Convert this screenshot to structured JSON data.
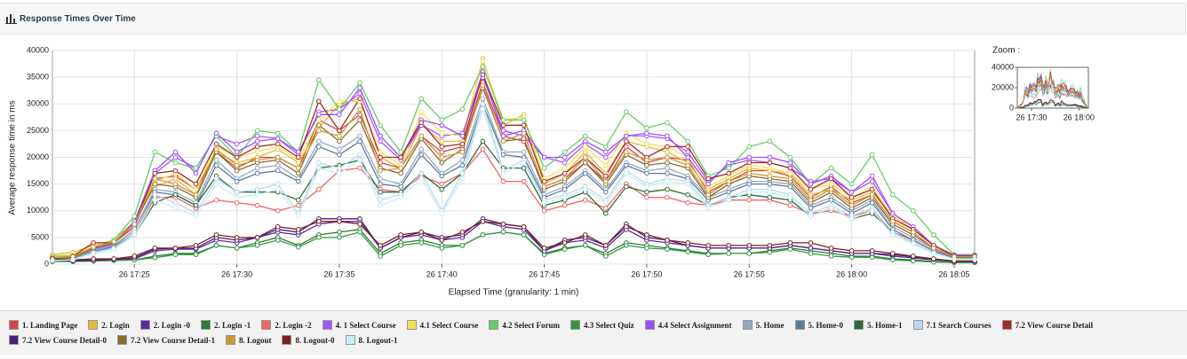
{
  "chart_data": {
    "type": "line",
    "title": "Response Times Over Time",
    "y_label": "Average response time in ms",
    "x_label": "Elapsed Time (granularity: 1 min)",
    "x": [
      "26 17:21",
      "26 17:22",
      "26 17:23",
      "26 17:24",
      "26 17:25",
      "26 17:26",
      "26 17:27",
      "26 17:28",
      "26 17:29",
      "26 17:30",
      "26 17:31",
      "26 17:32",
      "26 17:33",
      "26 17:34",
      "26 17:35",
      "26 17:36",
      "26 17:37",
      "26 17:38",
      "26 17:39",
      "26 17:40",
      "26 17:41",
      "26 17:42",
      "26 17:43",
      "26 17:44",
      "26 17:45",
      "26 17:46",
      "26 17:47",
      "26 17:48",
      "26 17:49",
      "26 17:50",
      "26 17:51",
      "26 17:52",
      "26 17:53",
      "26 17:54",
      "26 17:55",
      "26 17:56",
      "26 17:57",
      "26 17:58",
      "26 17:59",
      "26 18:00",
      "26 18:01",
      "26 18:02",
      "26 18:03",
      "26 18:04",
      "26 18:05",
      "26 18:06"
    ],
    "xticks": [
      "26 17:25",
      "26 17:30",
      "26 17:35",
      "26 17:40",
      "26 17:45",
      "26 17:50",
      "26 17:55",
      "26 18:00",
      "26 18:05"
    ],
    "ylim": [
      0,
      40000
    ],
    "yticks": [
      0,
      5000,
      10000,
      15000,
      20000,
      25000,
      30000,
      35000,
      40000
    ],
    "grid": true,
    "zoom": {
      "label": "Zoom :",
      "ylim": [
        0,
        40000
      ],
      "yticks": [
        0,
        20000,
        40000
      ],
      "xticks": [
        "26 17:30",
        "26 18:00"
      ]
    },
    "series": [
      {
        "name": "1. Landing Page",
        "color": "#d64545",
        "values": [
          1000,
          1500,
          3000,
          4000,
          7000,
          16000,
          16500,
          14000,
          21000,
          18000,
          20000,
          20000,
          18000,
          27000,
          25000,
          28000,
          19000,
          18000,
          24000,
          21000,
          22000,
          34000,
          24000,
          23000,
          14500,
          16000,
          19000,
          15500,
          22000,
          19000,
          20000,
          19500,
          13500,
          15500,
          17500,
          17500,
          16500,
          12500,
          14500,
          11500,
          13000,
          8000,
          6000,
          3000,
          1400,
          1400
        ]
      },
      {
        "name": "2. Login",
        "color": "#e8b83a",
        "values": [
          1800,
          2200,
          3500,
          4500,
          8000,
          14500,
          16000,
          13000,
          21000,
          19000,
          20000,
          21500,
          19000,
          25500,
          30000,
          31000,
          20000,
          18000,
          26000,
          23000,
          23000,
          38500,
          26000,
          28000,
          15000,
          17000,
          21000,
          17000,
          23000,
          22000,
          21000,
          19000,
          14000,
          16000,
          18000,
          17500,
          17000,
          13000,
          14000,
          12000,
          13500,
          9000,
          6500,
          3500,
          1800,
          1700
        ]
      },
      {
        "name": "2. Login -0",
        "color": "#5a2d9c",
        "values": [
          900,
          600,
          800,
          800,
          1000,
          2500,
          2800,
          2800,
          4500,
          4000,
          5000,
          6000,
          5500,
          7500,
          8000,
          8000,
          3000,
          5000,
          5500,
          4500,
          5000,
          8000,
          7000,
          6500,
          2500,
          4000,
          4500,
          3000,
          6500,
          4500,
          4000,
          3500,
          3000,
          3000,
          3000,
          3000,
          3500,
          3000,
          2500,
          2000,
          2000,
          1500,
          1200,
          800,
          500,
          500
        ]
      },
      {
        "name": "2. Login -1",
        "color": "#2e7d32",
        "values": [
          500,
          500,
          600,
          700,
          800,
          1500,
          2000,
          2000,
          3500,
          3000,
          4000,
          5000,
          3500,
          5500,
          6000,
          6500,
          2000,
          4000,
          4500,
          3500,
          3500,
          5500,
          6000,
          5500,
          2000,
          3000,
          3500,
          2000,
          4000,
          3500,
          3000,
          2500,
          2000,
          2000,
          2000,
          2500,
          3000,
          2500,
          2000,
          1500,
          1500,
          1000,
          800,
          500,
          300,
          300
        ]
      },
      {
        "name": "2. Login -2",
        "color": "#f06666",
        "values": [
          900,
          1000,
          2500,
          3200,
          6000,
          12500,
          12500,
          10500,
          12000,
          11500,
          11000,
          10000,
          11000,
          14000,
          17500,
          18000,
          14000,
          13500,
          16500,
          15000,
          17000,
          21500,
          15500,
          15500,
          10000,
          11000,
          12000,
          10500,
          15000,
          12500,
          12500,
          11500,
          11000,
          12000,
          12000,
          12000,
          11000,
          9500,
          10000,
          9000,
          10000,
          6000,
          4500,
          2500,
          1000,
          1000
        ]
      },
      {
        "name": "4. 1 Select Course",
        "color": "#a855f7",
        "values": [
          1200,
          1300,
          2500,
          3800,
          8000,
          17000,
          20000,
          18000,
          24000,
          22500,
          24000,
          23500,
          20500,
          28500,
          29000,
          32000,
          23000,
          19500,
          26000,
          24000,
          24500,
          35000,
          25000,
          24000,
          20000,
          19000,
          22500,
          20000,
          24000,
          24000,
          23500,
          21000,
          15500,
          18500,
          19500,
          19000,
          18000,
          15500,
          16000,
          13500,
          15500,
          9500,
          7000,
          3500,
          1600,
          1500
        ]
      },
      {
        "name": "4.1 Select Course",
        "color": "#f5e050",
        "values": [
          1500,
          1800,
          3200,
          4200,
          7500,
          15500,
          17000,
          14000,
          22000,
          20000,
          21000,
          22000,
          19500,
          27000,
          30500,
          30500,
          21000,
          18500,
          28500,
          24500,
          24000,
          38000,
          27000,
          27500,
          16000,
          18000,
          22000,
          18500,
          24500,
          22500,
          22000,
          20000,
          14500,
          16500,
          18500,
          18000,
          17000,
          14000,
          15000,
          12500,
          14500,
          9000,
          7000,
          3500,
          1800,
          1700
        ]
      },
      {
        "name": "4.2 Select Forum",
        "color": "#66cc66",
        "values": [
          1500,
          1500,
          3000,
          4500,
          9000,
          21000,
          19000,
          18000,
          24000,
          20000,
          25000,
          24500,
          21000,
          34500,
          29000,
          34000,
          26000,
          21000,
          31000,
          27000,
          29000,
          37000,
          27000,
          27000,
          18000,
          21000,
          24000,
          22000,
          28500,
          25500,
          26500,
          23000,
          16500,
          18000,
          22000,
          23000,
          20000,
          15000,
          18000,
          15000,
          20500,
          13000,
          10000,
          5500,
          1800,
          1800
        ]
      },
      {
        "name": "4.3 Select Quiz",
        "color": "#339944",
        "values": [
          600,
          500,
          600,
          700,
          800,
          1200,
          1800,
          1800,
          3500,
          3000,
          3500,
          4500,
          3200,
          5000,
          5000,
          6000,
          1500,
          3500,
          4000,
          3000,
          3500,
          5500,
          6000,
          5500,
          1800,
          2800,
          3500,
          1500,
          3500,
          3000,
          2800,
          2300,
          1800,
          2000,
          2000,
          2200,
          2800,
          2000,
          1500,
          1300,
          1300,
          800,
          600,
          400,
          300,
          300
        ]
      },
      {
        "name": "4.4 Select Assignment",
        "color": "#9b4dff",
        "values": [
          1200,
          1300,
          2800,
          4000,
          8000,
          17500,
          21000,
          17000,
          24500,
          21000,
          23000,
          23500,
          21000,
          28000,
          28000,
          33000,
          24000,
          20000,
          27000,
          26000,
          24000,
          36000,
          24000,
          25000,
          20000,
          20000,
          23000,
          21000,
          24000,
          24500,
          24000,
          20000,
          15000,
          19000,
          20000,
          20000,
          19000,
          15000,
          16500,
          13500,
          16500,
          9500,
          7000,
          3500,
          1700,
          1600
        ]
      },
      {
        "name": "5. Home",
        "color": "#8fa8c8",
        "values": [
          1000,
          1100,
          2500,
          3500,
          6500,
          14000,
          13500,
          11500,
          19500,
          16000,
          18000,
          18500,
          16000,
          23000,
          21500,
          24000,
          16000,
          15000,
          21500,
          17000,
          19500,
          31000,
          21000,
          21000,
          13000,
          14500,
          17500,
          14000,
          19000,
          17500,
          18000,
          16500,
          12500,
          14000,
          15500,
          15500,
          15000,
          11000,
          12500,
          10000,
          12000,
          7000,
          5000,
          2800,
          1200,
          1200
        ]
      },
      {
        "name": "5. Home-0",
        "color": "#5f7a99",
        "values": [
          900,
          1000,
          2300,
          3300,
          6000,
          13500,
          13000,
          11000,
          18500,
          15500,
          17000,
          17500,
          15500,
          22000,
          20500,
          23000,
          15000,
          14500,
          20500,
          16500,
          18500,
          30000,
          20500,
          20000,
          12500,
          14000,
          17000,
          13500,
          18500,
          17000,
          17000,
          16000,
          12000,
          13500,
          15000,
          15000,
          14500,
          10500,
          12000,
          9500,
          11500,
          6500,
          4500,
          2500,
          1100,
          1100
        ]
      },
      {
        "name": "5. Home-1",
        "color": "#2d6b3a",
        "values": [
          800,
          900,
          2000,
          3000,
          5500,
          11500,
          13000,
          11000,
          16500,
          13500,
          13500,
          13500,
          12000,
          18000,
          18500,
          19500,
          13500,
          13500,
          17000,
          14000,
          17000,
          23000,
          18000,
          18000,
          11000,
          12000,
          13500,
          9500,
          14500,
          13500,
          14000,
          13000,
          11000,
          12500,
          13000,
          12500,
          12000,
          9000,
          10500,
          8500,
          9500,
          6000,
          4000,
          2200,
          1000,
          1000
        ]
      },
      {
        "name": "7.1 Search Courses",
        "color": "#b8d8f0",
        "values": [
          800,
          900,
          2200,
          3000,
          6000,
          13000,
          11500,
          9500,
          16000,
          13500,
          14000,
          15000,
          9500,
          19000,
          18000,
          20500,
          12000,
          13000,
          17000,
          10000,
          17000,
          30000,
          17500,
          19500,
          12000,
          13000,
          14500,
          12000,
          17500,
          15000,
          16000,
          15500,
          11000,
          12500,
          14000,
          14000,
          13000,
          9500,
          11000,
          9000,
          10500,
          6000,
          4000,
          2200,
          1000,
          1000
        ]
      },
      {
        "name": "7.2 View Course Detail",
        "color": "#a52a2a",
        "values": [
          1000,
          1500,
          4000,
          4000,
          7500,
          17000,
          17500,
          15000,
          22500,
          20000,
          22000,
          22500,
          20000,
          30500,
          25000,
          31000,
          20000,
          20000,
          26500,
          22000,
          22500,
          35500,
          26000,
          26000,
          15500,
          17000,
          20000,
          16500,
          23000,
          20000,
          22000,
          22000,
          16000,
          17000,
          19000,
          19000,
          18000,
          14000,
          16000,
          12500,
          14000,
          8500,
          6500,
          3500,
          1500,
          1500
        ]
      },
      {
        "name": "7.2 View Course Detail-0",
        "color": "#4b1f7a",
        "values": [
          800,
          600,
          700,
          900,
          1200,
          2800,
          3000,
          3000,
          5000,
          4500,
          5000,
          6500,
          6000,
          8500,
          8500,
          8500,
          3000,
          5000,
          6000,
          5000,
          5500,
          8500,
          7500,
          7000,
          2500,
          4500,
          5000,
          3500,
          7500,
          5000,
          4500,
          3500,
          3000,
          3000,
          3000,
          3000,
          3500,
          3000,
          2500,
          2000,
          2000,
          1800,
          1400,
          900,
          500,
          500
        ]
      },
      {
        "name": "7.2 View Course Detail-1",
        "color": "#8b6b2a",
        "values": [
          1000,
          1200,
          3000,
          4000,
          7500,
          15000,
          14500,
          12500,
          21000,
          17500,
          19000,
          19500,
          17000,
          26000,
          23000,
          27000,
          18000,
          17000,
          23500,
          19000,
          21500,
          33000,
          23000,
          23500,
          14000,
          15500,
          19000,
          15000,
          20500,
          18500,
          19000,
          18000,
          12500,
          15000,
          16500,
          16000,
          15500,
          11500,
          13500,
          10500,
          12500,
          7500,
          5500,
          3000,
          1300,
          1300
        ]
      },
      {
        "name": "8. Logout",
        "color": "#c89a3a",
        "values": [
          1200,
          1400,
          3200,
          4200,
          7500,
          16000,
          15000,
          13000,
          21500,
          18500,
          19500,
          20000,
          18000,
          25000,
          24000,
          29000,
          17500,
          18000,
          24000,
          20000,
          21000,
          33500,
          23000,
          24500,
          14500,
          16000,
          20000,
          15500,
          21000,
          19500,
          20000,
          18500,
          13000,
          15500,
          17000,
          16500,
          16000,
          12000,
          14000,
          11000,
          13000,
          8000,
          6000,
          3000,
          1400,
          1400
        ]
      },
      {
        "name": "8. Logout-0",
        "color": "#7a2020",
        "values": [
          1000,
          800,
          1000,
          1000,
          1500,
          3000,
          3000,
          3500,
          5500,
          5000,
          5000,
          7000,
          6500,
          8000,
          8000,
          7500,
          3500,
          5500,
          6000,
          4500,
          6000,
          8000,
          7500,
          7000,
          3000,
          4000,
          5500,
          3500,
          7000,
          5500,
          4500,
          4000,
          3500,
          3500,
          3500,
          3500,
          4000,
          4000,
          3000,
          2500,
          2500,
          2000,
          1500,
          1000,
          600,
          600
        ]
      },
      {
        "name": "8. Logout-1",
        "color": "#c8eef5",
        "values": [
          700,
          800,
          2000,
          2800,
          5500,
          12000,
          10500,
          9000,
          15000,
          12500,
          13000,
          14000,
          9000,
          18000,
          17000,
          19500,
          11000,
          12500,
          16000,
          9500,
          16000,
          29000,
          17000,
          19000,
          11500,
          12500,
          14000,
          11500,
          17000,
          14500,
          15500,
          15000,
          10500,
          12000,
          13500,
          13500,
          12500,
          9000,
          10500,
          8500,
          10000,
          5500,
          3800,
          2000,
          900,
          900
        ]
      }
    ]
  }
}
